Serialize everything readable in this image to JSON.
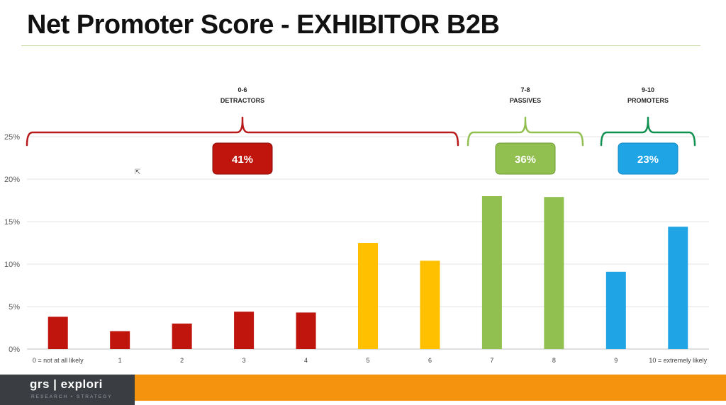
{
  "slide": {
    "title": "Net Promoter Score - EXHIBITOR B2B",
    "logo_main": "grs | explori",
    "logo_sub": "RESEARCH • STRATEGY"
  },
  "chart_data": {
    "type": "bar",
    "categories": [
      "0 = not at all likely",
      "1",
      "2",
      "3",
      "4",
      "5",
      "6",
      "7",
      "8",
      "9",
      "10 = extremely likely"
    ],
    "values": [
      3.8,
      2.1,
      3.0,
      4.4,
      4.3,
      12.5,
      10.4,
      18.0,
      17.9,
      9.1,
      14.4
    ],
    "bar_colors": [
      "#c0150c",
      "#c0150c",
      "#c0150c",
      "#c0150c",
      "#c0150c",
      "#ffc000",
      "#ffc000",
      "#92c050",
      "#92c050",
      "#1fa5e6",
      "#1fa5e6"
    ],
    "ylim": [
      0,
      25
    ],
    "yticks": [
      "0%",
      "5%",
      "10%",
      "15%",
      "20%",
      "25%"
    ],
    "ytick_values": [
      0,
      5,
      10,
      15,
      20,
      25
    ],
    "grid": true,
    "groups": [
      {
        "range": "0-6",
        "name": "DETRACTORS",
        "value": "41%",
        "color": "#c0150c",
        "from": 0,
        "to": 6
      },
      {
        "range": "7-8",
        "name": "PASSIVES",
        "value": "36%",
        "color": "#92c050",
        "from": 7,
        "to": 8
      },
      {
        "range": "9-10",
        "name": "PROMOTERS",
        "value": "23%",
        "color": "#1fa5e6",
        "from": 9,
        "to": 10
      }
    ],
    "brace_colors": [
      "#b8191b",
      "#92c050",
      "#109050"
    ]
  }
}
